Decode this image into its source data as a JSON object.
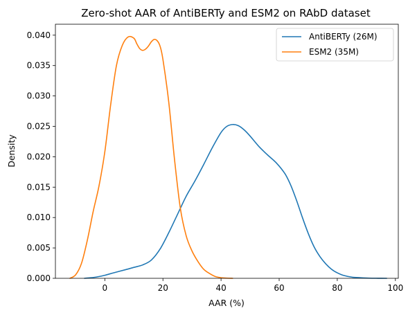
{
  "chart_data": {
    "type": "line",
    "title": "Zero-shot AAR of AntiBERTy and ESM2 on RAbD dataset",
    "xlabel": "AAR (%)",
    "ylabel": "Density",
    "xlim": [
      -17,
      101
    ],
    "ylim": [
      0,
      0.0418
    ],
    "xticks": [
      0,
      20,
      40,
      60,
      80,
      100
    ],
    "xtick_labels": [
      "0",
      "20",
      "40",
      "60",
      "80",
      "100"
    ],
    "yticks": [
      0,
      0.005,
      0.01,
      0.015,
      0.02,
      0.025,
      0.03,
      0.035,
      0.04
    ],
    "ytick_labels": [
      "0.000",
      "0.005",
      "0.010",
      "0.015",
      "0.020",
      "0.025",
      "0.030",
      "0.035",
      "0.040"
    ],
    "grid": false,
    "legend_position": "top-right",
    "series": [
      {
        "name": "AntiBERTy (26M)",
        "color": "#1f77b4",
        "x": [
          -7,
          -3,
          0,
          3,
          7,
          10,
          13,
          16,
          19,
          22,
          25,
          28,
          31,
          34,
          37,
          40,
          42,
          44,
          46,
          48,
          50,
          53,
          56,
          59,
          62,
          64,
          66,
          68,
          70,
          72,
          74,
          76,
          78,
          80,
          82,
          85,
          88,
          91,
          94,
          97
        ],
        "y": [
          0.0,
          0.0002,
          0.0005,
          0.0009,
          0.0014,
          0.0018,
          0.0022,
          0.003,
          0.0048,
          0.0075,
          0.0105,
          0.0135,
          0.016,
          0.0187,
          0.0215,
          0.024,
          0.025,
          0.0253,
          0.0251,
          0.0244,
          0.0234,
          0.0217,
          0.0203,
          0.019,
          0.0172,
          0.0153,
          0.0128,
          0.01,
          0.0074,
          0.0052,
          0.0036,
          0.0024,
          0.0015,
          0.0009,
          0.0005,
          0.0002,
          0.0001,
          3e-05,
          1e-05,
          0.0
        ]
      },
      {
        "name": "ESM2 (35M)",
        "color": "#ff7f0e",
        "x": [
          -12,
          -10,
          -8,
          -6,
          -4,
          -2,
          0,
          2,
          4,
          6,
          8,
          10,
          11,
          12,
          13,
          14,
          15,
          16,
          17,
          18,
          19,
          20,
          22,
          24,
          26,
          28,
          30,
          32,
          34,
          36,
          38,
          40,
          42,
          44
        ],
        "y": [
          0.0,
          0.0006,
          0.0025,
          0.0063,
          0.011,
          0.0152,
          0.0208,
          0.0285,
          0.035,
          0.0383,
          0.0397,
          0.0395,
          0.0386,
          0.0378,
          0.0375,
          0.0377,
          0.0382,
          0.0389,
          0.0393,
          0.0391,
          0.0382,
          0.036,
          0.029,
          0.0195,
          0.0115,
          0.007,
          0.0045,
          0.0028,
          0.0015,
          0.0008,
          0.0003,
          0.0001,
          3e-05,
          0.0
        ]
      }
    ]
  }
}
